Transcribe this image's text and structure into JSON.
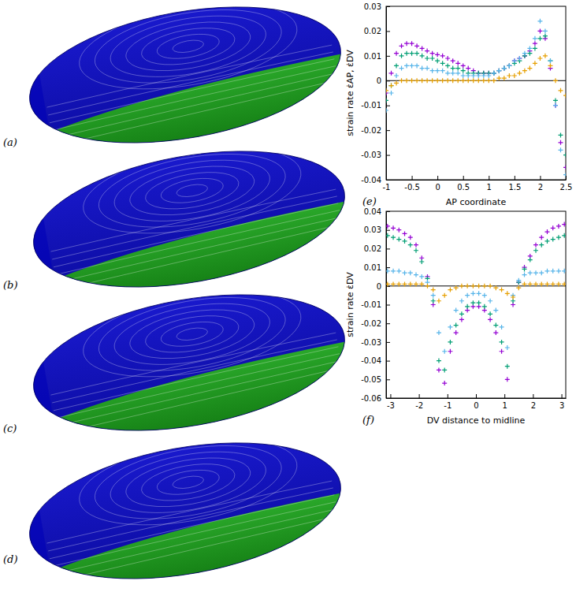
{
  "panels": [
    "(a)",
    "(b)",
    "(c)",
    "(d)"
  ],
  "chart_data": [
    {
      "type": "scatter",
      "panel_label": "(e)",
      "x_label": "AP coordinate",
      "y_label": "strain rate ε̇AP, ε̇DV",
      "xlim": [
        -1,
        2.5
      ],
      "xticks": [
        -1,
        -0.5,
        0,
        0.5,
        1,
        1.5,
        2,
        2.5
      ],
      "ylim": [
        -0.04,
        0.03
      ],
      "yticks": [
        -0.04,
        -0.03,
        -0.02,
        -0.01,
        0,
        0.01,
        0.02,
        0.03
      ],
      "reference_line": 0,
      "grid": false,
      "x": [
        -1,
        -0.9,
        -0.8,
        -0.7,
        -0.6,
        -0.5,
        -0.4,
        -0.3,
        -0.2,
        -0.1,
        0,
        0.1,
        0.2,
        0.3,
        0.4,
        0.5,
        0.6,
        0.7,
        0.8,
        0.9,
        1,
        1.1,
        1.2,
        1.3,
        1.4,
        1.5,
        1.6,
        1.7,
        1.8,
        1.9,
        2,
        2.1,
        2.2,
        2.3,
        2.4,
        2.5
      ],
      "series": [
        {
          "color": "#9400d3",
          "marker": "plus",
          "values": [
            -0.005,
            0.003,
            0.011,
            0.014,
            0.015,
            0.015,
            0.014,
            0.013,
            0.012,
            0.011,
            0.0105,
            0.01,
            0.009,
            0.008,
            0.007,
            0.006,
            0.005,
            0.004,
            0.003,
            0.003,
            0.003,
            0.003,
            0.004,
            0.005,
            0.006,
            0.008,
            0.009,
            0.01,
            0.012,
            0.015,
            0.02,
            0.017,
            0.005,
            -0.01,
            -0.025,
            -0.035
          ]
        },
        {
          "color": "#009e73",
          "marker": "plus",
          "values": [
            -0.008,
            -0.002,
            0.006,
            0.01,
            0.011,
            0.011,
            0.011,
            0.01,
            0.009,
            0.009,
            0.008,
            0.007,
            0.006,
            0.005,
            0.005,
            0.004,
            0.003,
            0.003,
            0.003,
            0.003,
            0.003,
            0.003,
            0.004,
            0.005,
            0.006,
            0.007,
            0.008,
            0.01,
            0.011,
            0.013,
            0.017,
            0.018,
            0.008,
            -0.008,
            -0.022,
            -0.03
          ]
        },
        {
          "color": "#56b4e9",
          "marker": "plus",
          "values": [
            -0.012,
            -0.005,
            0.002,
            0.005,
            0.006,
            0.006,
            0.006,
            0.005,
            0.005,
            0.004,
            0.004,
            0.004,
            0.003,
            0.003,
            0.003,
            0.002,
            0.002,
            0.002,
            0.002,
            0.002,
            0.002,
            0.003,
            0.004,
            0.005,
            0.006,
            0.008,
            0.009,
            0.011,
            0.013,
            0.017,
            0.024,
            0.02,
            0.008,
            -0.01,
            -0.028,
            -0.038
          ]
        },
        {
          "color": "#e69f00",
          "marker": "plus",
          "values": [
            -0.004,
            -0.002,
            -0.001,
            0,
            0,
            0,
            0,
            0,
            0,
            0,
            0,
            0,
            0,
            0,
            0,
            0,
            0,
            0,
            0,
            0,
            0,
            0,
            0.001,
            0.001,
            0.002,
            0.002,
            0.003,
            0.004,
            0.005,
            0.007,
            0.009,
            0.01,
            0.006,
            0,
            -0.004,
            -0.006
          ]
        }
      ]
    },
    {
      "type": "scatter",
      "panel_label": "(f)",
      "x_label": "DV distance to midline",
      "y_label": "strain rate ε̇DV",
      "xlim": [
        -3.15,
        3.15
      ],
      "xticks": [
        -3,
        -2,
        -1,
        0,
        1,
        2,
        3
      ],
      "ylim": [
        -0.06,
        0.04
      ],
      "yticks": [
        -0.06,
        -0.05,
        -0.04,
        -0.03,
        -0.02,
        -0.01,
        0,
        0.01,
        0.02,
        0.03,
        0.04
      ],
      "reference_line": 0,
      "grid": false,
      "x": [
        -3.1,
        -2.9,
        -2.7,
        -2.5,
        -2.3,
        -2.1,
        -1.9,
        -1.7,
        -1.5,
        -1.3,
        -1.1,
        -0.9,
        -0.7,
        -0.5,
        -0.3,
        -0.1,
        0.1,
        0.3,
        0.5,
        0.7,
        0.9,
        1.1,
        1.3,
        1.5,
        1.7,
        1.9,
        2.1,
        2.3,
        2.5,
        2.7,
        2.9,
        3.1
      ],
      "series": [
        {
          "color": "#9400d3",
          "marker": "plus",
          "values": [
            0.032,
            0.031,
            0.03,
            0.028,
            0.026,
            0.022,
            0.015,
            0.005,
            -0.01,
            -0.045,
            -0.052,
            -0.035,
            -0.025,
            -0.018,
            -0.013,
            -0.011,
            -0.011,
            -0.013,
            -0.018,
            -0.025,
            -0.035,
            -0.05,
            -0.01,
            0.002,
            0.01,
            0.016,
            0.022,
            0.026,
            0.029,
            0.031,
            0.032,
            0.033
          ]
        },
        {
          "color": "#009e73",
          "marker": "plus",
          "values": [
            0.027,
            0.026,
            0.025,
            0.024,
            0.022,
            0.019,
            0.013,
            0.004,
            -0.008,
            -0.04,
            -0.045,
            -0.03,
            -0.021,
            -0.015,
            -0.011,
            -0.009,
            -0.009,
            -0.011,
            -0.015,
            -0.021,
            -0.03,
            -0.043,
            -0.008,
            0.002,
            0.009,
            0.014,
            0.019,
            0.022,
            0.024,
            0.025,
            0.026,
            0.027
          ]
        },
        {
          "color": "#56b4e9",
          "marker": "plus",
          "values": [
            0.008,
            0.008,
            0.008,
            0.007,
            0.007,
            0.006,
            0.005,
            0.002,
            -0.005,
            -0.025,
            -0.035,
            -0.022,
            -0.013,
            -0.008,
            -0.005,
            -0.004,
            -0.004,
            -0.005,
            -0.008,
            -0.013,
            -0.022,
            -0.033,
            -0.005,
            0.003,
            0.006,
            0.007,
            0.007,
            0.007,
            0.008,
            0.008,
            0.008,
            0.008
          ]
        },
        {
          "color": "#e69f00",
          "marker": "plus",
          "values": [
            0.001,
            0.001,
            0.001,
            0.001,
            0.001,
            0.001,
            0.001,
            0,
            -0.002,
            -0.008,
            -0.005,
            -0.002,
            -0.001,
            0,
            0,
            0,
            0,
            0,
            0,
            -0.001,
            -0.002,
            -0.004,
            -0.006,
            -0.001,
            0.001,
            0.001,
            0.001,
            0.001,
            0.001,
            0.001,
            0.001,
            0.001
          ]
        }
      ]
    }
  ]
}
